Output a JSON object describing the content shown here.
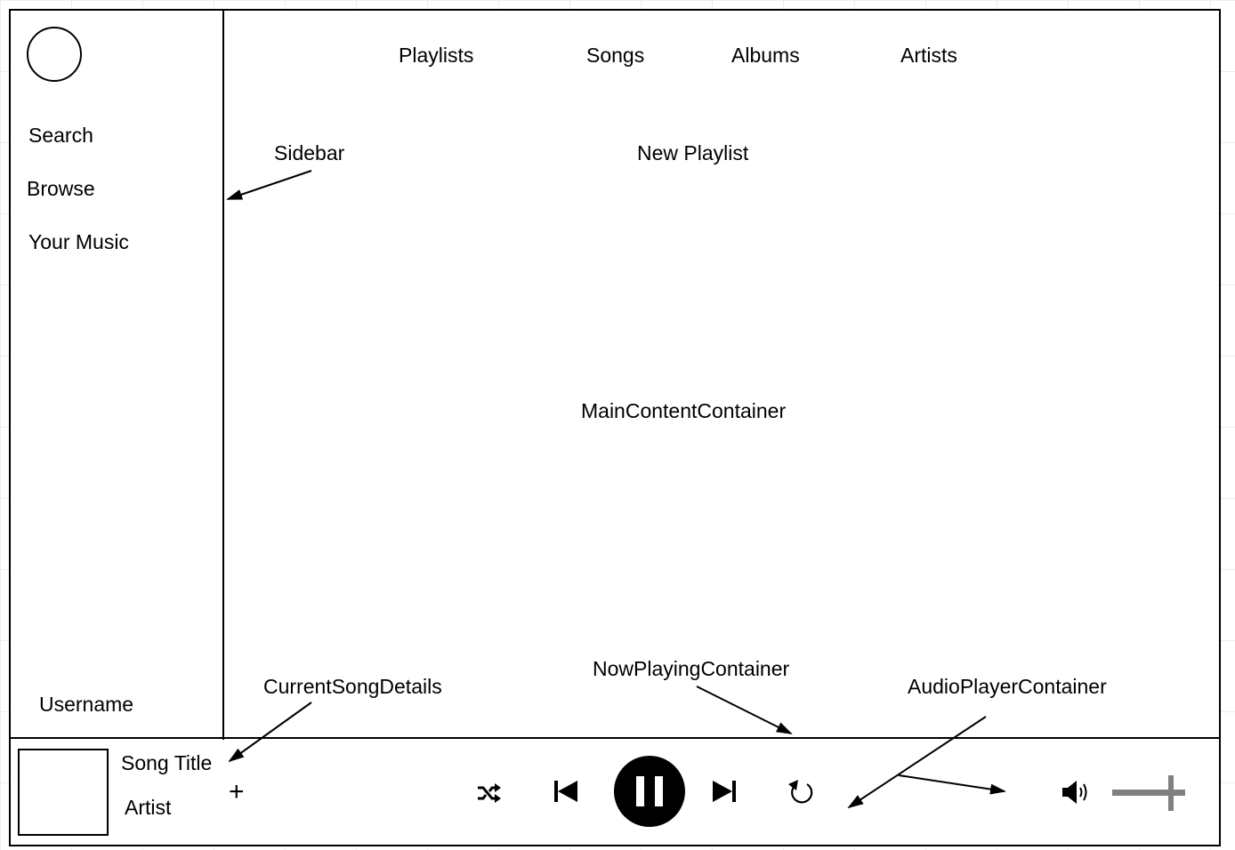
{
  "sidebar": {
    "items": [
      {
        "label": "Search"
      },
      {
        "label": "Browse"
      },
      {
        "label": "Your Music"
      }
    ],
    "username": "Username"
  },
  "header": {
    "tabs": [
      {
        "label": "Playlists"
      },
      {
        "label": "Songs"
      },
      {
        "label": "Albums"
      },
      {
        "label": "Artists"
      }
    ]
  },
  "main": {
    "new_playlist": "New Playlist",
    "container_label": "MainContentContainer"
  },
  "annotations": {
    "sidebar": "Sidebar",
    "current_song_details": "CurrentSongDetails",
    "now_playing_container": "NowPlayingContainer",
    "audio_player_container": "AudioPlayerContainer"
  },
  "player": {
    "song_title": "Song Title",
    "artist": "Artist",
    "add_symbol": "+",
    "icons": [
      "shuffle-icon",
      "previous-icon",
      "pause-icon",
      "next-icon",
      "repeat-icon",
      "volume-icon"
    ],
    "volume_slider_color": "#808080"
  }
}
